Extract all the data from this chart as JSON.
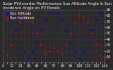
{
  "title": "Solar PV/Inverter Performance Sun Altitude Angle & Sun Incidence Angle on PV Panels",
  "legend": [
    "Sun Altitude",
    "Sun Incidence"
  ],
  "line_colors": [
    "#0000ee",
    "#dd0000"
  ],
  "bg_color": "#2a2a2a",
  "plot_bg": "#2a2a2a",
  "grid_color": "#555555",
  "text_color": "#ffffff",
  "ylim": [
    0,
    90
  ],
  "xlim": [
    0,
    144
  ],
  "ytick_vals": [
    10,
    20,
    30,
    40,
    50,
    60,
    70,
    80,
    90
  ],
  "altitude_x": [
    0,
    6,
    12,
    18,
    24,
    30,
    36,
    42,
    48,
    54,
    60,
    66,
    72,
    78,
    84,
    90,
    96,
    102,
    108,
    114,
    120,
    126,
    132,
    138,
    144
  ],
  "altitude_y": [
    90,
    85,
    72,
    55,
    35,
    18,
    8,
    18,
    35,
    55,
    72,
    85,
    90,
    85,
    72,
    55,
    35,
    18,
    8,
    18,
    35,
    55,
    72,
    85,
    90
  ],
  "incidence_x": [
    0,
    6,
    12,
    18,
    24,
    30,
    36,
    42,
    48,
    54,
    60,
    66,
    72,
    78,
    84,
    90,
    96,
    102,
    108,
    114,
    120,
    126,
    132,
    138,
    144
  ],
  "incidence_y": [
    5,
    12,
    30,
    50,
    68,
    78,
    80,
    68,
    50,
    30,
    15,
    20,
    25,
    20,
    15,
    30,
    50,
    68,
    80,
    78,
    68,
    50,
    30,
    12,
    5
  ],
  "title_fontsize": 4.0,
  "tick_fontsize": 3.5,
  "legend_fontsize": 3.5,
  "markersize": 2.0,
  "num_xticks": 25
}
